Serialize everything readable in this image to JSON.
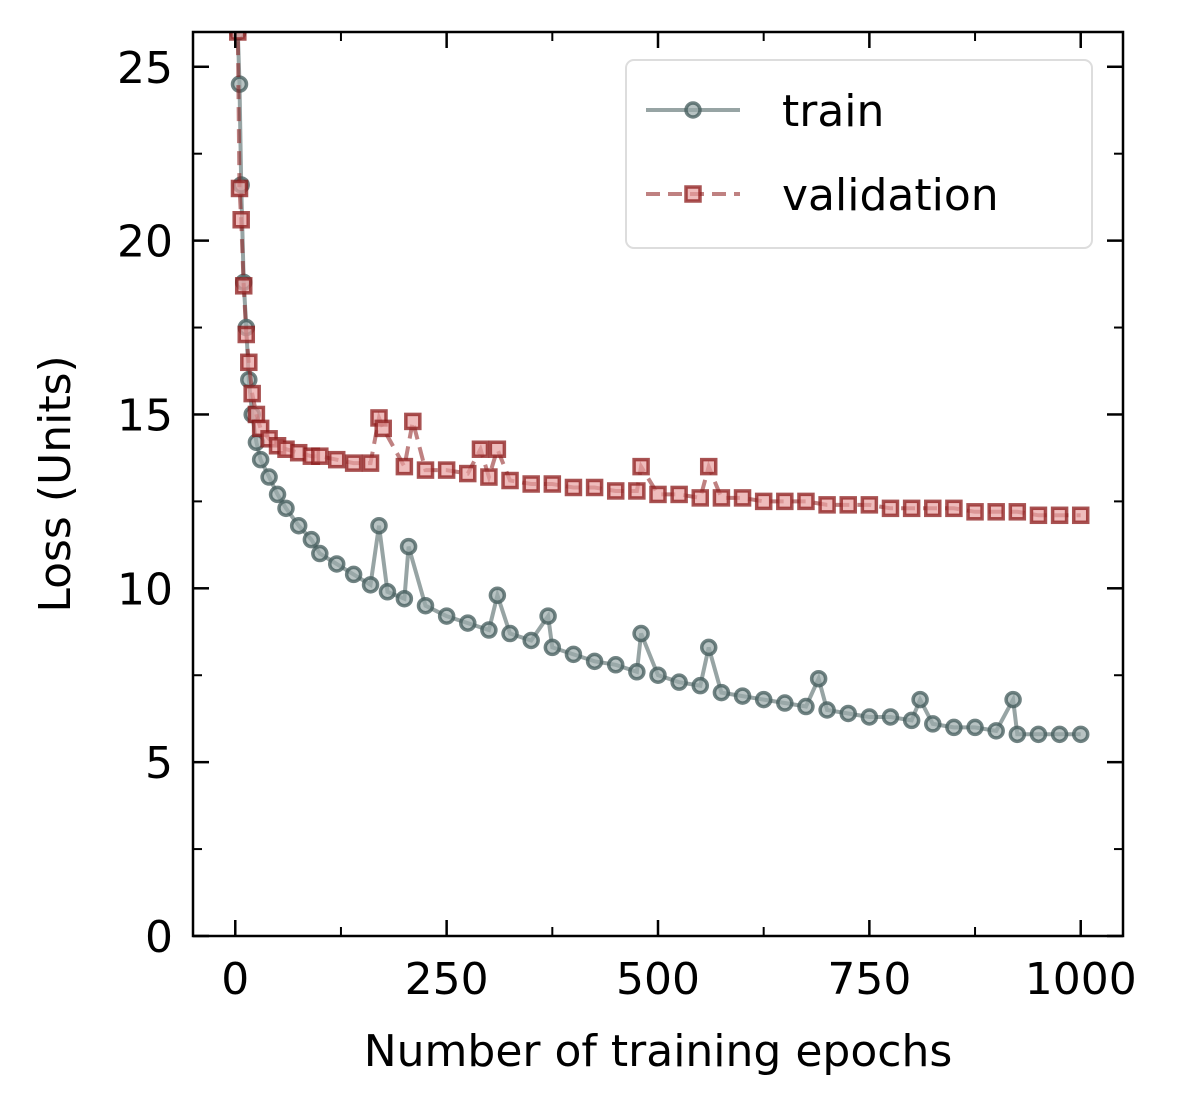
{
  "chart_data": {
    "type": "line",
    "xlabel": "Number of training epochs",
    "ylabel": "Loss (Units)",
    "xlim": [
      -50,
      1050
    ],
    "ylim": [
      0,
      26
    ],
    "xticks": [
      0,
      250,
      500,
      750,
      1000
    ],
    "yticks": [
      0,
      5,
      10,
      15,
      20,
      25
    ],
    "legend_position": "top-right",
    "series": [
      {
        "name": "train",
        "color": "#415a5a",
        "fill": "#9aa9a9",
        "marker": "circle",
        "linestyle": "solid",
        "x": [
          1,
          3,
          5,
          7,
          10,
          13,
          16,
          20,
          25,
          30,
          40,
          50,
          60,
          75,
          90,
          100,
          120,
          140,
          160,
          170,
          180,
          200,
          205,
          225,
          250,
          275,
          300,
          310,
          325,
          350,
          370,
          375,
          400,
          425,
          450,
          475,
          480,
          500,
          525,
          550,
          560,
          575,
          600,
          625,
          650,
          675,
          690,
          700,
          725,
          750,
          775,
          800,
          810,
          825,
          850,
          875,
          900,
          920,
          925,
          950,
          975,
          1000
        ],
        "y": [
          27.0,
          26.0,
          24.5,
          21.6,
          18.8,
          17.5,
          16.0,
          15.0,
          14.2,
          13.7,
          13.2,
          12.7,
          12.3,
          11.8,
          11.4,
          11.0,
          10.7,
          10.4,
          10.1,
          11.8,
          9.9,
          9.7,
          11.2,
          9.5,
          9.2,
          9.0,
          8.8,
          9.8,
          8.7,
          8.5,
          9.2,
          8.3,
          8.1,
          7.9,
          7.8,
          7.6,
          8.7,
          7.5,
          7.3,
          7.2,
          8.3,
          7.0,
          6.9,
          6.8,
          6.7,
          6.6,
          7.4,
          6.5,
          6.4,
          6.3,
          6.3,
          6.2,
          6.8,
          6.1,
          6.0,
          6.0,
          5.9,
          6.8,
          5.8,
          5.8,
          5.8,
          5.8
        ]
      },
      {
        "name": "validation",
        "color": "#8b1a1a",
        "fill": "#e8a0a0",
        "marker": "square",
        "linestyle": "dashed",
        "x": [
          1,
          3,
          5,
          7,
          10,
          13,
          16,
          20,
          25,
          30,
          40,
          50,
          60,
          75,
          90,
          100,
          120,
          140,
          160,
          170,
          175,
          200,
          210,
          225,
          250,
          275,
          290,
          300,
          310,
          325,
          350,
          375,
          400,
          425,
          450,
          475,
          480,
          500,
          525,
          550,
          560,
          575,
          600,
          625,
          650,
          675,
          700,
          725,
          750,
          775,
          800,
          825,
          850,
          875,
          900,
          925,
          950,
          975,
          1000
        ],
        "y": [
          27.0,
          26.0,
          21.5,
          20.6,
          18.7,
          17.3,
          16.5,
          15.6,
          15.0,
          14.6,
          14.3,
          14.1,
          14.0,
          13.9,
          13.8,
          13.8,
          13.7,
          13.6,
          13.6,
          14.9,
          14.6,
          13.5,
          14.8,
          13.4,
          13.4,
          13.3,
          14.0,
          13.2,
          14.0,
          13.1,
          13.0,
          13.0,
          12.9,
          12.9,
          12.8,
          12.8,
          13.5,
          12.7,
          12.7,
          12.6,
          13.5,
          12.6,
          12.6,
          12.5,
          12.5,
          12.5,
          12.4,
          12.4,
          12.4,
          12.3,
          12.3,
          12.3,
          12.3,
          12.2,
          12.2,
          12.2,
          12.1,
          12.1,
          12.1
        ]
      }
    ]
  }
}
